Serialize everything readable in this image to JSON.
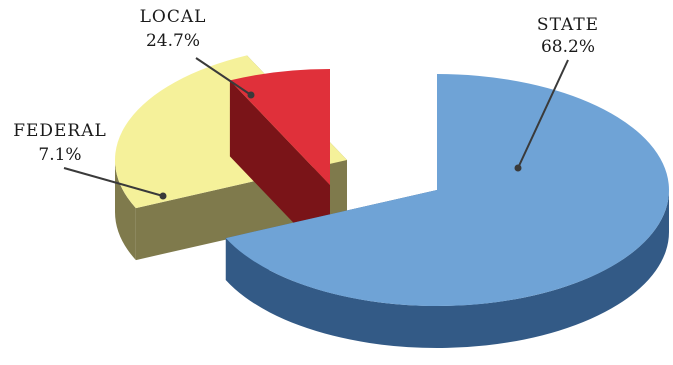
{
  "chart_data": {
    "type": "pie",
    "style": "3d-exploded",
    "categories": [
      "STATE",
      "LOCAL",
      "FEDERAL"
    ],
    "values": [
      68.2,
      24.7,
      7.1
    ],
    "value_labels": [
      "68.2%",
      "24.7%",
      "7.1%"
    ],
    "colors": {
      "STATE": {
        "top": "#6fa3d6",
        "side": "#335a86"
      },
      "LOCAL": {
        "top": "#f5f19a",
        "side": "#7f7a4c"
      },
      "FEDERAL": {
        "top": "#e0303a",
        "side": "#7a1418"
      }
    },
    "legend": "none",
    "title": ""
  }
}
